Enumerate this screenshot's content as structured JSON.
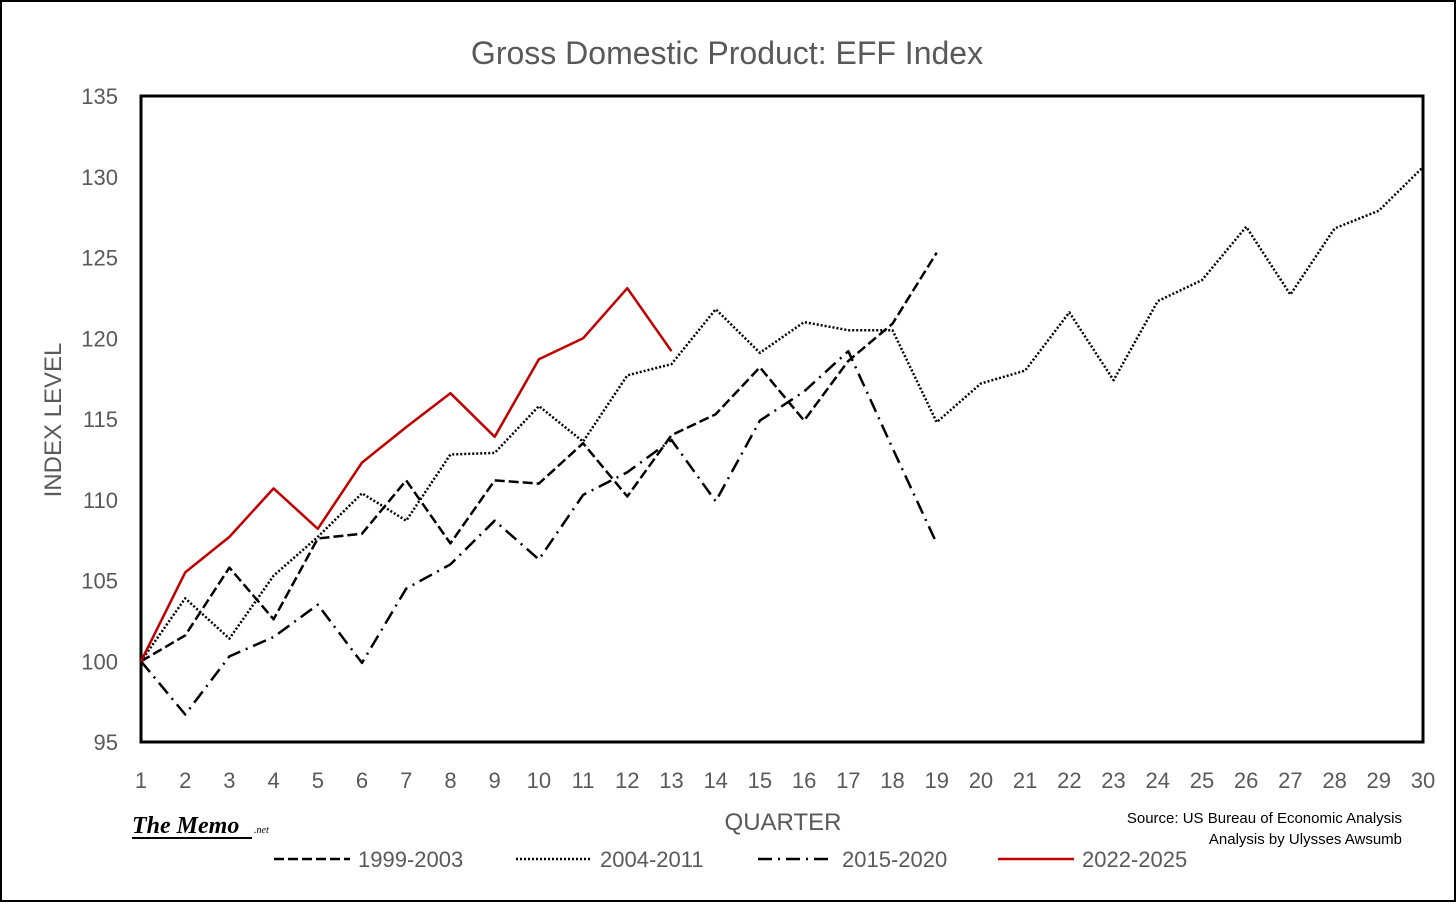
{
  "chart_data": {
    "type": "line",
    "title": "Gross Domestic Product: EFF Index",
    "xlabel": "QUARTER",
    "ylabel": "INDEX LEVEL",
    "xlim": [
      1,
      30
    ],
    "ylim": [
      95,
      135
    ],
    "yticks": [
      95,
      100,
      105,
      110,
      115,
      120,
      125,
      130,
      135
    ],
    "xticks": [
      1,
      2,
      3,
      4,
      5,
      6,
      7,
      8,
      9,
      10,
      11,
      12,
      13,
      14,
      15,
      16,
      17,
      18,
      19,
      20,
      21,
      22,
      23,
      24,
      25,
      26,
      27,
      28,
      29,
      30
    ],
    "grid": false,
    "legend": "bottom",
    "series": [
      {
        "name": "1999-2003",
        "dash": "dashed",
        "color": "#000000",
        "x": [
          1,
          2,
          3,
          4,
          5,
          6,
          7,
          8,
          9,
          10,
          11,
          12,
          13,
          14,
          15,
          16,
          17,
          18,
          19
        ],
        "values": [
          100.0,
          101.6,
          105.8,
          102.6,
          107.6,
          107.9,
          111.2,
          107.3,
          111.2,
          111.0,
          113.5,
          110.2,
          114.0,
          115.3,
          118.2,
          114.9,
          118.6,
          120.9,
          125.3
        ]
      },
      {
        "name": "2004-2011",
        "dash": "dotted",
        "color": "#000000",
        "x": [
          1,
          2,
          3,
          4,
          5,
          6,
          7,
          8,
          9,
          10,
          11,
          12,
          13,
          14,
          15,
          16,
          17,
          18,
          19,
          20,
          21,
          22,
          23,
          24,
          25,
          26,
          27,
          28,
          29,
          30
        ],
        "values": [
          100.0,
          103.9,
          101.4,
          105.3,
          107.7,
          110.4,
          108.7,
          112.8,
          112.9,
          115.8,
          113.6,
          117.7,
          118.4,
          121.8,
          119.1,
          121.0,
          120.5,
          120.5,
          114.8,
          117.2,
          118.0,
          121.6,
          117.4,
          122.3,
          123.6,
          126.9,
          122.7,
          126.8,
          127.9,
          130.6
        ]
      },
      {
        "name": "2015-2020",
        "dash": "dashdot",
        "color": "#000000",
        "x": [
          1,
          2,
          3,
          4,
          5,
          6,
          7,
          8,
          9,
          10,
          11,
          12,
          13,
          14,
          15,
          16,
          17,
          18,
          19
        ],
        "values": [
          100.0,
          96.7,
          100.3,
          101.5,
          103.5,
          99.9,
          104.5,
          106.0,
          108.7,
          106.3,
          110.3,
          111.7,
          113.7,
          109.9,
          114.9,
          116.7,
          119.2,
          113.2,
          107.3
        ]
      },
      {
        "name": "2022-2025",
        "dash": "solid",
        "color": "#C00000",
        "x": [
          1,
          2,
          3,
          4,
          5,
          6,
          7,
          8,
          9,
          10,
          11,
          12,
          13
        ],
        "values": [
          100.0,
          105.5,
          107.7,
          110.7,
          108.2,
          112.3,
          114.5,
          116.6,
          113.9,
          118.7,
          120.0,
          123.1,
          119.2
        ]
      }
    ]
  },
  "source": {
    "line1": "Source: US Bureau of Economic Analysis",
    "line2": "Analysis by Ulysses Awsumb"
  },
  "logo": {
    "text": "The Memo",
    "suffix": ".net"
  }
}
